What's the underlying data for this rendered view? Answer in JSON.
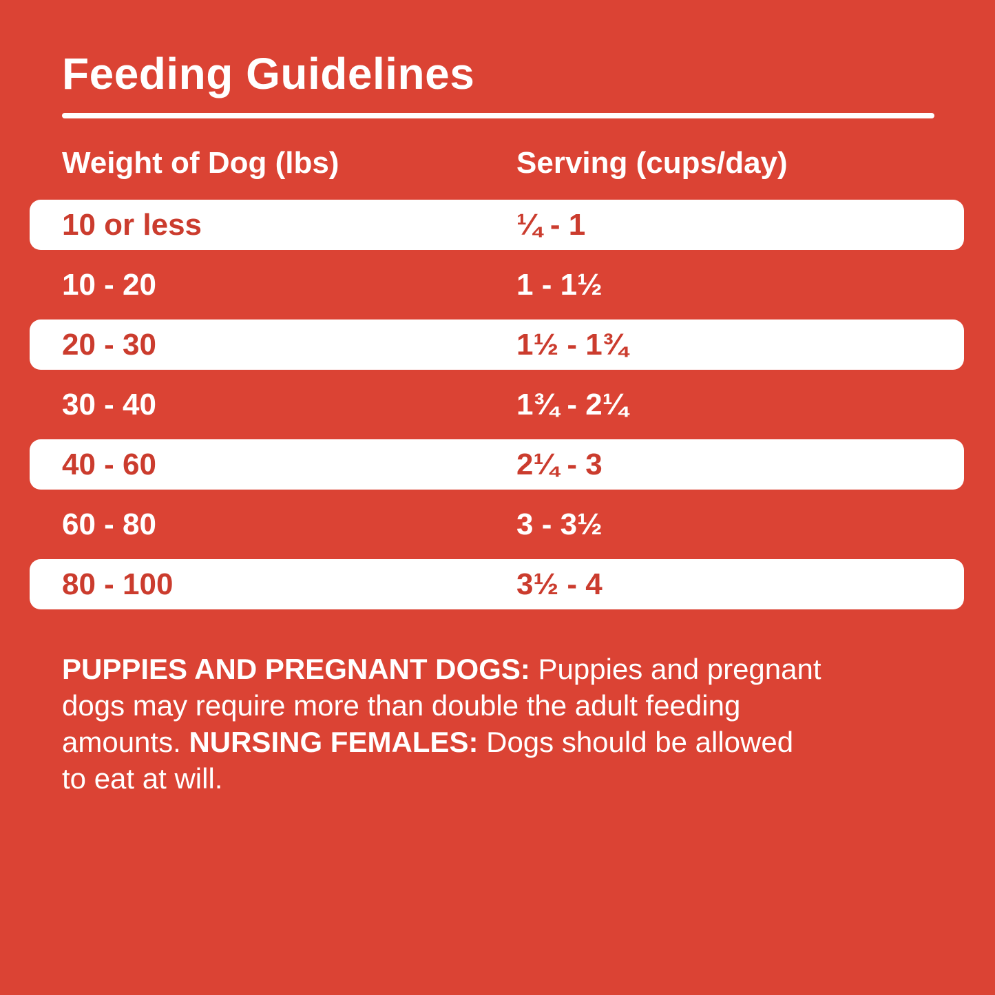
{
  "page": {
    "background_color": "#DB4334",
    "row_highlight_color": "#FFFFFF",
    "red_text_color": "#CB3C2E",
    "text_color": "#FFFFFF"
  },
  "title": "Feeding Guidelines",
  "table": {
    "col1_header": "Weight of Dog (lbs)",
    "col2_header": "Serving (cups/day)",
    "rows": [
      {
        "weight": "10 or less",
        "serving": "¼ - 1",
        "highlight": true
      },
      {
        "weight": "10 - 20",
        "serving": "1 - 1½",
        "highlight": false
      },
      {
        "weight": "20 - 30",
        "serving": "1½ - 1¾",
        "highlight": true
      },
      {
        "weight": "30 - 40",
        "serving": "1¾ - 2¼",
        "highlight": false
      },
      {
        "weight": "40 - 60",
        "serving": "2¼ - 3",
        "highlight": true
      },
      {
        "weight": "60 - 80",
        "serving": "3 - 3½",
        "highlight": false
      },
      {
        "weight": "80 - 100",
        "serving": "3½ - 4",
        "highlight": true
      }
    ]
  },
  "footer": {
    "lines": [
      [
        {
          "bold": true,
          "text": "PUPPIES AND PREGNANT DOGS:"
        },
        {
          "bold": false,
          "text": " Puppies and pregnant"
        }
      ],
      [
        {
          "bold": false,
          "text": "dogs may require more than double the adult feeding"
        }
      ],
      [
        {
          "bold": false,
          "text": "amounts. "
        },
        {
          "bold": true,
          "text": "NURSING FEMALES:"
        },
        {
          "bold": false,
          "text": " Dogs should be allowed"
        }
      ],
      [
        {
          "bold": false,
          "text": "to eat at will."
        }
      ]
    ]
  }
}
